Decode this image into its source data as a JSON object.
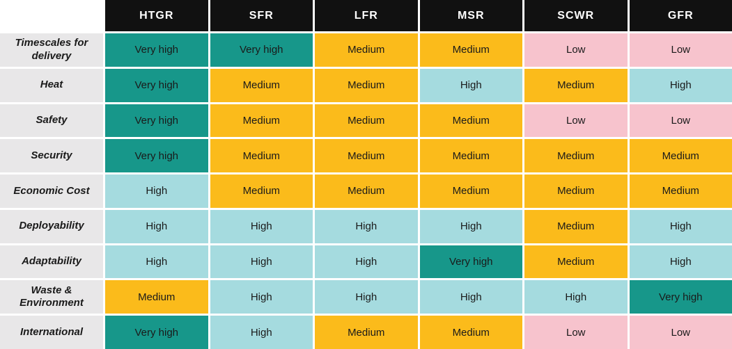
{
  "table": {
    "columns": [
      "HTGR",
      "SFR",
      "LFR",
      "MSR",
      "SCWR",
      "GFR"
    ],
    "rows": [
      {
        "label": "Timescales for delivery",
        "values": [
          "Very high",
          "Very high",
          "Medium",
          "Medium",
          "Low",
          "Low"
        ]
      },
      {
        "label": "Heat",
        "values": [
          "Very high",
          "Medium",
          "Medium",
          "High",
          "Medium",
          "High"
        ]
      },
      {
        "label": "Safety",
        "values": [
          "Very high",
          "Medium",
          "Medium",
          "Medium",
          "Low",
          "Low"
        ]
      },
      {
        "label": "Security",
        "values": [
          "Very high",
          "Medium",
          "Medium",
          "Medium",
          "Medium",
          "Medium"
        ]
      },
      {
        "label": "Economic Cost",
        "values": [
          "High",
          "Medium",
          "Medium",
          "Medium",
          "Medium",
          "Medium"
        ]
      },
      {
        "label": "Deployability",
        "values": [
          "High",
          "High",
          "High",
          "High",
          "Medium",
          "High"
        ]
      },
      {
        "label": "Adaptability",
        "values": [
          "High",
          "High",
          "High",
          "Very high",
          "Medium",
          "High"
        ]
      },
      {
        "label": "Waste & Environment",
        "values": [
          "Medium",
          "High",
          "High",
          "High",
          "High",
          "Very high"
        ]
      },
      {
        "label": "International",
        "values": [
          "Very high",
          "High",
          "Medium",
          "Medium",
          "Low",
          "Low"
        ]
      }
    ],
    "colors": {
      "header_bg": "#111111",
      "header_text": "#ffffff",
      "label_bg": "#e8e7e8",
      "cell_text": "#1a1a1a",
      "levels": {
        "Very high": "#17978a",
        "High": "#a5dbdf",
        "Medium": "#fbbb1b",
        "Low": "#f7c3cd"
      }
    }
  },
  "chart_data": {
    "type": "heatmap",
    "title": "",
    "columns": [
      "HTGR",
      "SFR",
      "LFR",
      "MSR",
      "SCWR",
      "GFR"
    ],
    "row_categories": [
      "Timescales for delivery",
      "Heat",
      "Safety",
      "Security",
      "Economic Cost",
      "Deployability",
      "Adaptability",
      "Waste & Environment",
      "International"
    ],
    "values": [
      [
        "Very high",
        "Very high",
        "Medium",
        "Medium",
        "Low",
        "Low"
      ],
      [
        "Very high",
        "Medium",
        "Medium",
        "High",
        "Medium",
        "High"
      ],
      [
        "Very high",
        "Medium",
        "Medium",
        "Medium",
        "Low",
        "Low"
      ],
      [
        "Very high",
        "Medium",
        "Medium",
        "Medium",
        "Medium",
        "Medium"
      ],
      [
        "High",
        "Medium",
        "Medium",
        "Medium",
        "Medium",
        "Medium"
      ],
      [
        "High",
        "High",
        "High",
        "High",
        "Medium",
        "High"
      ],
      [
        "High",
        "High",
        "High",
        "Very high",
        "Medium",
        "High"
      ],
      [
        "Medium",
        "High",
        "High",
        "High",
        "High",
        "Very high"
      ],
      [
        "Very high",
        "High",
        "Medium",
        "Medium",
        "Low",
        "Low"
      ]
    ],
    "scale": [
      {
        "label": "Very high",
        "color": "#17978a"
      },
      {
        "label": "High",
        "color": "#a5dbdf"
      },
      {
        "label": "Medium",
        "color": "#fbbb1b"
      },
      {
        "label": "Low",
        "color": "#f7c3cd"
      }
    ],
    "legend_position": "none",
    "grid": false
  }
}
